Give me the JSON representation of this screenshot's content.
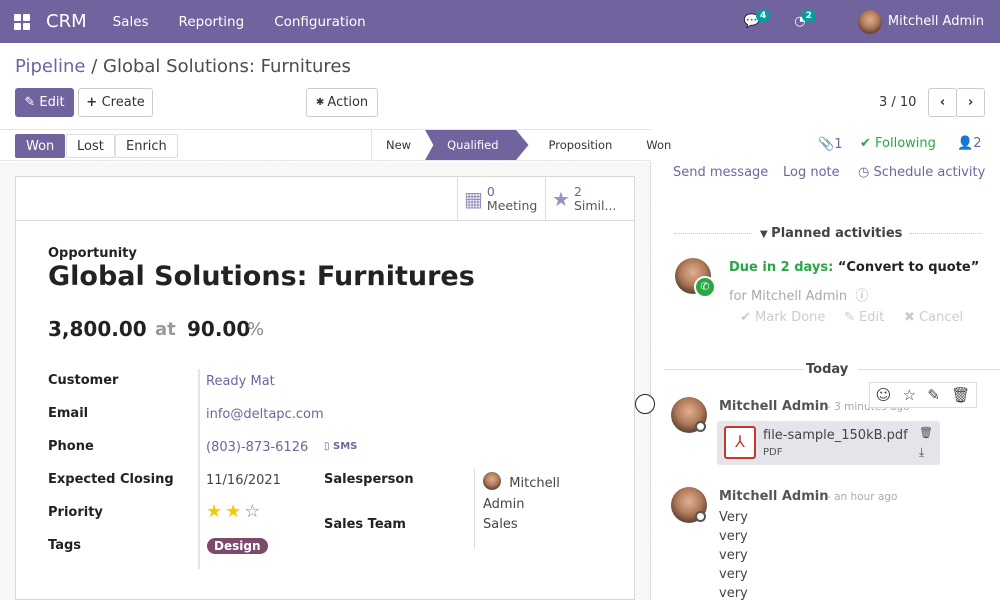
{
  "nav": {
    "brand": "CRM",
    "menus": [
      "Sales",
      "Reporting",
      "Configuration"
    ],
    "messages_count": "4",
    "activities_count": "2",
    "user": "Mitchell Admin",
    "color": "#71639e"
  },
  "breadcrumb": {
    "parent": "Pipeline",
    "separator": "/",
    "current": "Global Solutions: Furnitures"
  },
  "toolbar": {
    "edit": "Edit",
    "create": "Create",
    "action": "Action",
    "pager": "3 / 10"
  },
  "status_buttons": {
    "won": "Won",
    "lost": "Lost",
    "enrich": "Enrich"
  },
  "stages": [
    {
      "label": "New",
      "active": false
    },
    {
      "label": "Qualified",
      "active": true
    },
    {
      "label": "Proposition",
      "active": false
    },
    {
      "label": "Won",
      "active": false
    }
  ],
  "smart_buttons": [
    {
      "count": "0",
      "label": "Meeting",
      "icon": "calendar-icon"
    },
    {
      "count": "2",
      "label": "Simil...",
      "icon": "star-icon"
    }
  ],
  "form": {
    "type_label": "Opportunity",
    "title": "Global Solutions: Furnitures",
    "revenue": "3,800.00",
    "at": "at",
    "probability": "90.00",
    "percent": "%",
    "fields": {
      "customer_label": "Customer",
      "customer": "Ready Mat",
      "email_label": "Email",
      "email": "info@deltapc.com",
      "phone_label": "Phone",
      "phone": "(803)-873-6126",
      "sms": "SMS",
      "closing_label": "Expected Closing",
      "closing": "11/16/2021",
      "priority_label": "Priority",
      "priority": 2,
      "priority_max": 3,
      "tags_label": "Tags",
      "tag": "Design",
      "tag_color": "#7c4a6b",
      "salesperson_label": "Salesperson",
      "salesperson_first": "Mitchell",
      "salesperson_last": "Admin",
      "team_label": "Sales Team",
      "team": "Sales"
    }
  },
  "chatter": {
    "attachments": "1",
    "following": "Following",
    "followers": "2",
    "send_message": "Send message",
    "log_note": "Log note",
    "schedule": "Schedule activity",
    "planned": "Planned activities",
    "activity": {
      "due": "Due in 2 days:",
      "summary": "“Convert to quote”",
      "for": "for Mitchell Admin",
      "mark_done": "Mark Done",
      "edit": "Edit",
      "cancel": "Cancel"
    },
    "today": "Today",
    "messages": [
      {
        "author": "Mitchell Admin",
        "time": "- 3 minutes ago",
        "file": "file-sample_150kB.pdf",
        "file_type": "PDF"
      },
      {
        "author": "Mitchell Admin",
        "time": "- an hour ago",
        "lines": [
          "Very",
          "very",
          "very",
          "very",
          "very"
        ]
      }
    ]
  }
}
